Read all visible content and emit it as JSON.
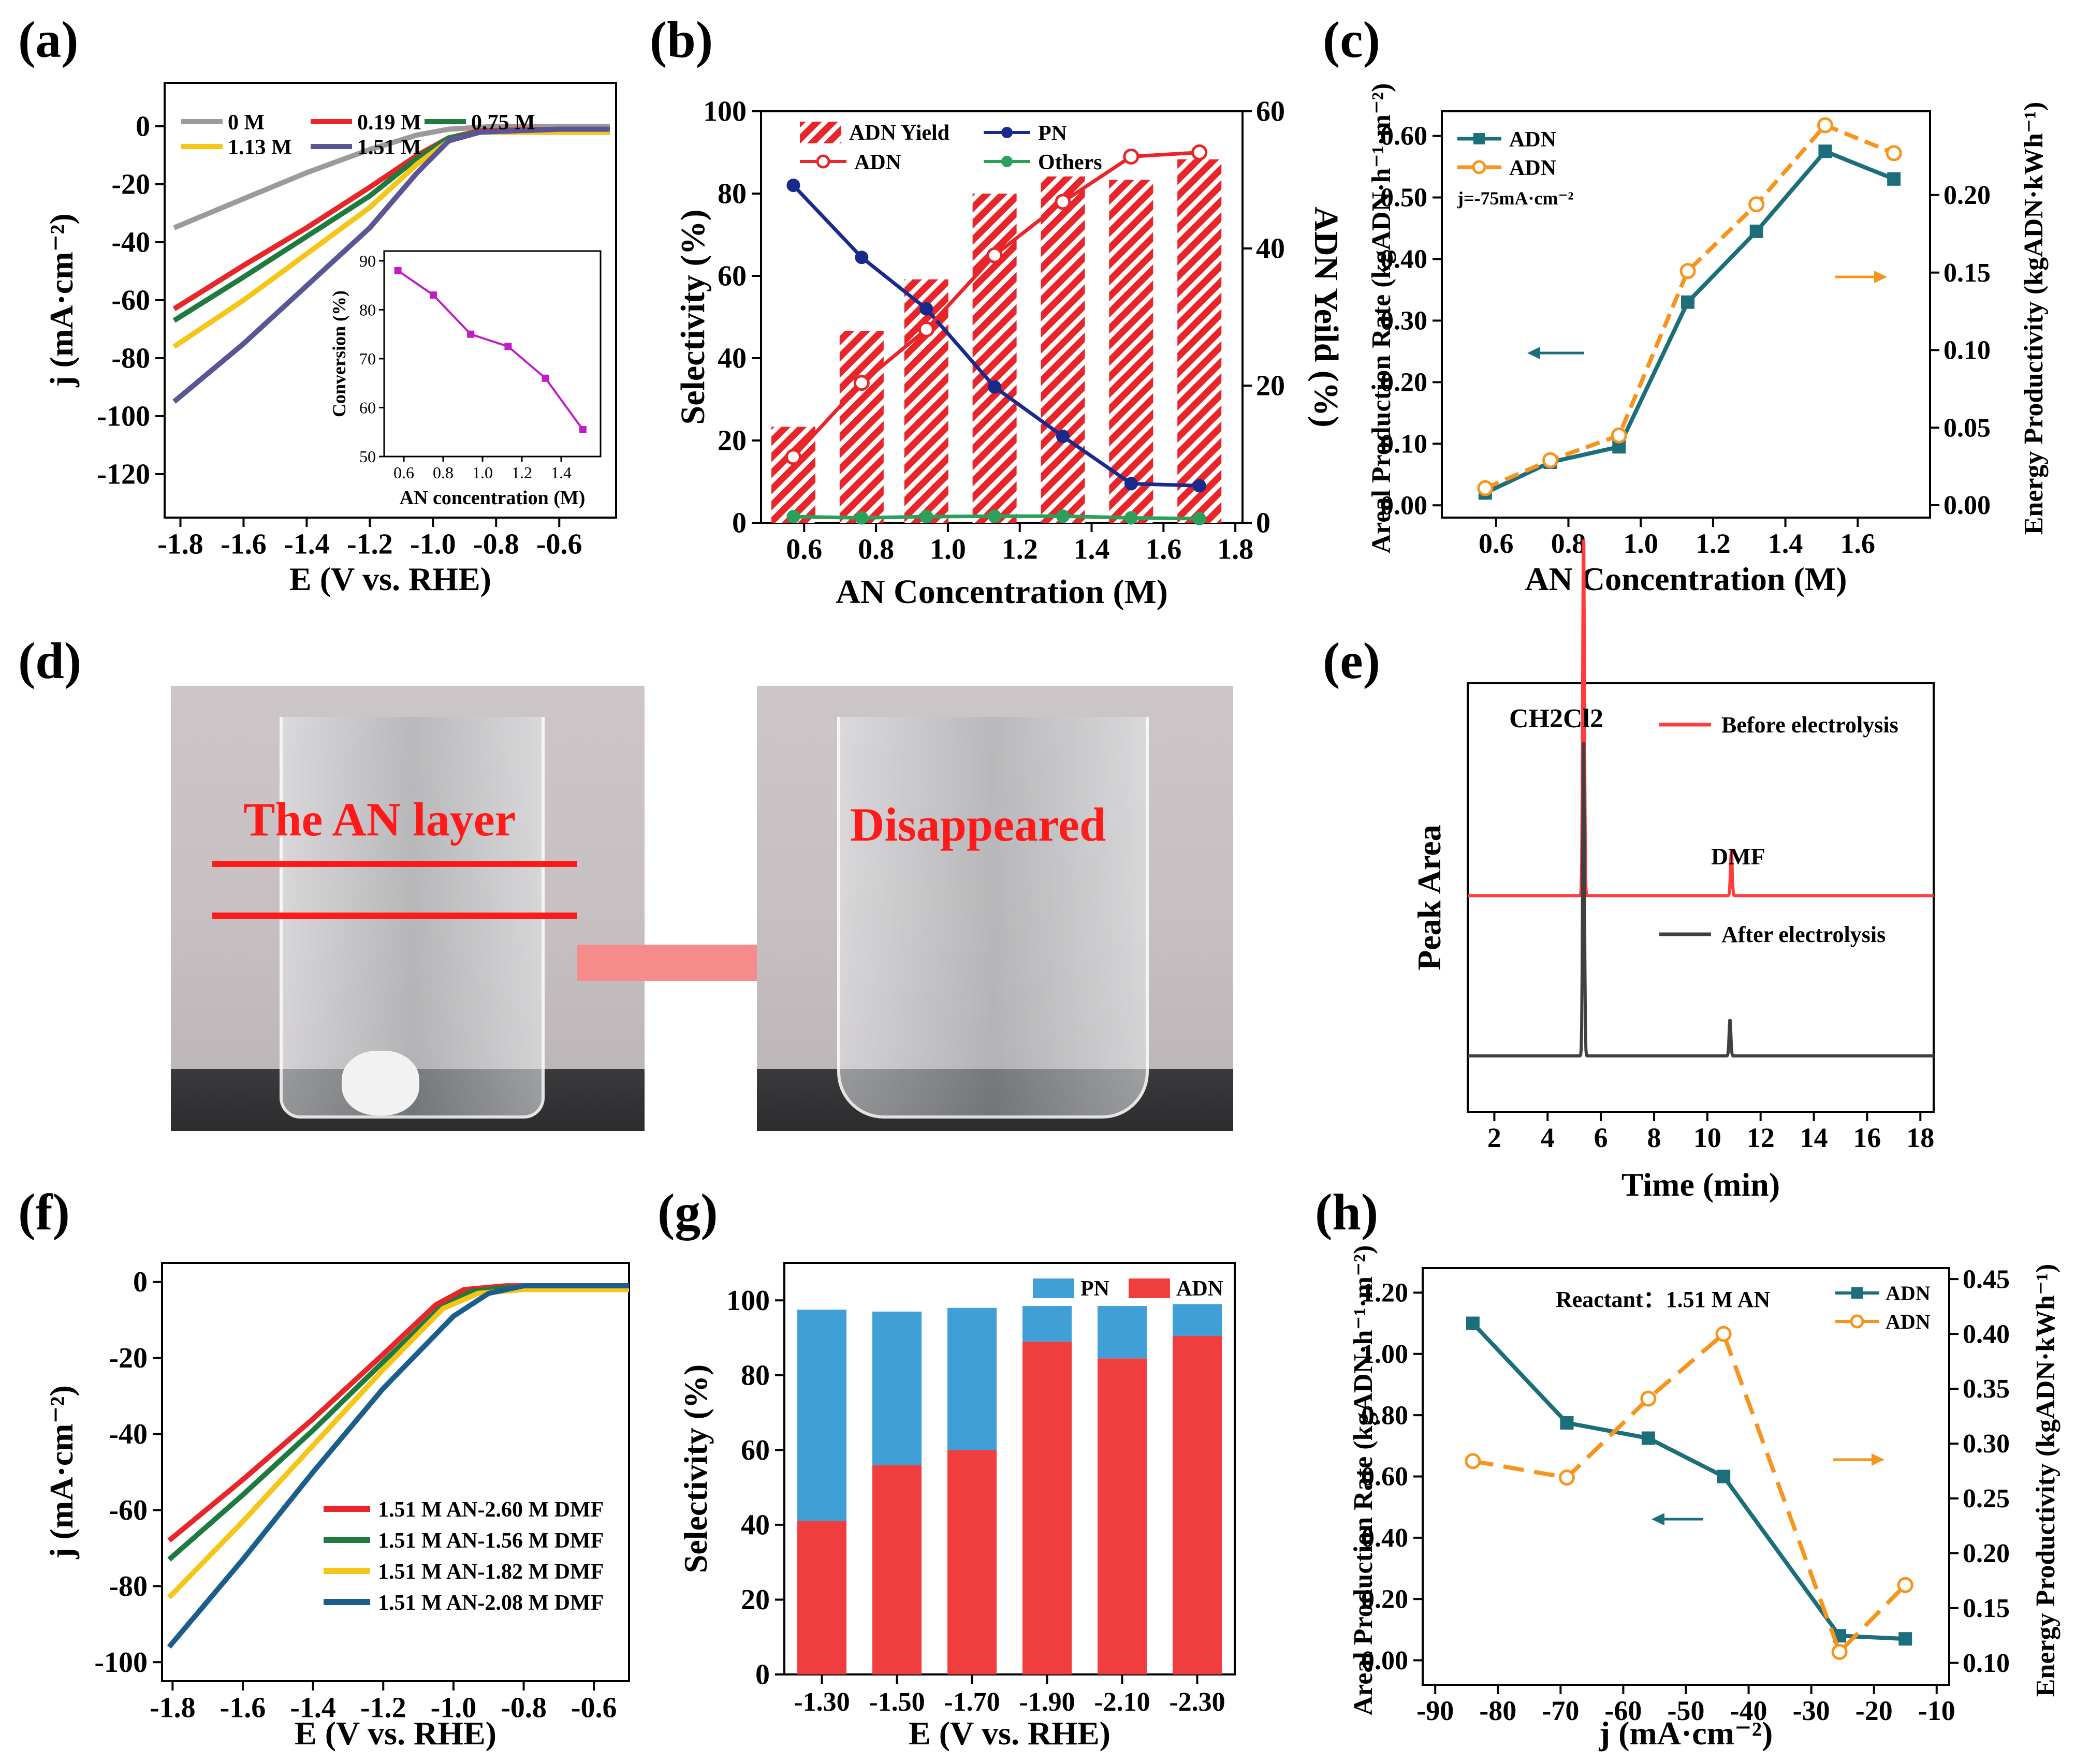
{
  "panels": {
    "a": "(a)",
    "b": "(b)",
    "c": "(c)",
    "d": "(d)",
    "e": "(e)",
    "f": "(f)",
    "g": "(g)",
    "h": "(h)"
  },
  "photo": {
    "left_label": "The AN layer",
    "right_label": "Disappeared"
  },
  "colors": {
    "red": "#e8262a",
    "blue": "#1a2a8c",
    "green": "#2aa05a",
    "teal": "#1b6e7a",
    "orange": "#f7941d",
    "gray": "#9b9b9b",
    "gold": "#f5c518",
    "indigo": "#5a5696",
    "magenta": "#c21cc4",
    "darkgreen": "#1e7a3e",
    "navy": "#1b5e8c",
    "lightblue": "#3f9fd6",
    "brightred": "#f03e3e",
    "gc_red": "#ff3b3b",
    "gc_black": "#404040"
  },
  "chart_data": [
    {
      "id": "a",
      "type": "line",
      "xlabel": "E (V vs. RHE)",
      "ylabel": "j (mA·cm⁻²)",
      "xlim": [
        -1.85,
        -0.42
      ],
      "ylim": [
        -135,
        15
      ],
      "xticks": [
        -1.8,
        -1.6,
        -1.4,
        -1.2,
        -1.0,
        -0.8,
        -0.6
      ],
      "yticks": [
        0,
        -20,
        -40,
        -60,
        -80,
        -100,
        -120
      ],
      "series": [
        {
          "name": "0 M",
          "color": "gray",
          "points": [
            [
              -1.82,
              -35
            ],
            [
              -1.6,
              -25
            ],
            [
              -1.4,
              -16
            ],
            [
              -1.2,
              -8
            ],
            [
              -1.05,
              -3
            ],
            [
              -0.95,
              -1
            ],
            [
              -0.8,
              0
            ],
            [
              -0.6,
              0
            ],
            [
              -0.44,
              0
            ]
          ]
        },
        {
          "name": "0.19 M",
          "color": "red",
          "points": [
            [
              -1.82,
              -63
            ],
            [
              -1.6,
              -48
            ],
            [
              -1.4,
              -35
            ],
            [
              -1.2,
              -21
            ],
            [
              -1.05,
              -10
            ],
            [
              -0.95,
              -4
            ],
            [
              -0.85,
              -1.5
            ],
            [
              -0.6,
              -1
            ],
            [
              -0.44,
              -1
            ]
          ]
        },
        {
          "name": "0.75 M",
          "color": "darkgreen",
          "points": [
            [
              -1.82,
              -67
            ],
            [
              -1.6,
              -52
            ],
            [
              -1.4,
              -38
            ],
            [
              -1.2,
              -24
            ],
            [
              -1.05,
              -11
            ],
            [
              -0.95,
              -4
            ],
            [
              -0.85,
              -2
            ],
            [
              -0.6,
              -2
            ],
            [
              -0.44,
              -2
            ]
          ]
        },
        {
          "name": "1.13 M",
          "color": "gold",
          "points": [
            [
              -1.82,
              -76
            ],
            [
              -1.6,
              -60
            ],
            [
              -1.4,
              -44
            ],
            [
              -1.2,
              -28
            ],
            [
              -1.05,
              -13
            ],
            [
              -0.95,
              -5
            ],
            [
              -0.85,
              -2
            ],
            [
              -0.6,
              -2
            ],
            [
              -0.44,
              -2
            ]
          ]
        },
        {
          "name": "1.51 M",
          "color": "indigo",
          "points": [
            [
              -1.82,
              -95
            ],
            [
              -1.6,
              -75
            ],
            [
              -1.4,
              -55
            ],
            [
              -1.2,
              -35
            ],
            [
              -1.05,
              -16
            ],
            [
              -0.95,
              -5
            ],
            [
              -0.85,
              -2
            ],
            [
              -0.6,
              -1
            ],
            [
              -0.44,
              -1
            ]
          ]
        }
      ],
      "inset": {
        "xlabel": "AN concentration (M)",
        "ylabel": "Conversion (%)",
        "xlim": [
          0.5,
          1.6
        ],
        "ylim": [
          50,
          92
        ],
        "xticks": [
          0.6,
          0.8,
          1.0,
          1.2,
          1.4
        ],
        "yticks": [
          50,
          60,
          70,
          80,
          90
        ],
        "x": [
          0.57,
          0.75,
          0.94,
          1.13,
          1.32,
          1.51
        ],
        "y": [
          88,
          83,
          75,
          72.5,
          66,
          55.5
        ]
      }
    },
    {
      "id": "b",
      "type": "bar+line",
      "xlabel": "AN Concentration (M)",
      "ylabel": "Selectivity (%)",
      "y2label": "ADN Yeild (%)",
      "xlim": [
        0.48,
        1.82
      ],
      "ylim": [
        0,
        100
      ],
      "y2lim": [
        0,
        60
      ],
      "xticks": [
        0.6,
        0.8,
        1.0,
        1.2,
        1.4,
        1.6,
        1.8
      ],
      "yticks": [
        0,
        20,
        40,
        60,
        80,
        100
      ],
      "y2ticks": [
        0,
        20,
        40,
        60
      ],
      "x": [
        0.57,
        0.76,
        0.94,
        1.13,
        1.32,
        1.51,
        1.7
      ],
      "bars": {
        "name": "ADN Yield",
        "values": [
          14,
          28,
          35.5,
          48,
          50.5,
          50,
          53
        ]
      },
      "series": [
        {
          "name": "PN",
          "color": "blue",
          "marker": "filled",
          "values": [
            82,
            64.5,
            52,
            33,
            21,
            9.5,
            9
          ]
        },
        {
          "name": "ADN",
          "color": "red",
          "marker": "open",
          "values": [
            16,
            34,
            47,
            65,
            78,
            89,
            90
          ]
        },
        {
          "name": "Others",
          "color": "green",
          "marker": "filled",
          "values": [
            1.5,
            1.2,
            1.5,
            1.6,
            1.6,
            1.2,
            1.0
          ]
        }
      ]
    },
    {
      "id": "c",
      "type": "line",
      "xlabel": "AN Concentration (M)",
      "ylabel": "Areal Production Rate (kgADN·h⁻¹·m⁻²)",
      "y2label": "Energy Productivity (kgADN·kWh⁻¹)",
      "xlim": [
        0.45,
        1.8
      ],
      "ylim": [
        -0.02,
        0.64
      ],
      "y2lim": [
        -0.008,
        0.254
      ],
      "xticks": [
        0.6,
        0.8,
        1.0,
        1.2,
        1.4,
        1.6
      ],
      "yticks": [
        0.0,
        0.1,
        0.2,
        0.3,
        0.4,
        0.5,
        0.6
      ],
      "y2ticks": [
        0.0,
        0.05,
        0.1,
        0.15,
        0.2
      ],
      "annotation": "j=-75mA·cm⁻²",
      "x": [
        0.57,
        0.75,
        0.94,
        1.13,
        1.32,
        1.51,
        1.7
      ],
      "series": [
        {
          "name": "ADN",
          "axis": "left",
          "color": "teal",
          "marker": "square",
          "values": [
            0.02,
            0.07,
            0.095,
            0.33,
            0.445,
            0.575,
            0.53
          ]
        },
        {
          "name": "ADN",
          "axis": "right",
          "color": "orange",
          "marker": "open-circle",
          "values": [
            0.011,
            0.029,
            0.045,
            0.151,
            0.194,
            0.245,
            0.227
          ]
        }
      ]
    },
    {
      "id": "e",
      "type": "line",
      "xlabel": "Time (min)",
      "ylabel": "Peak Area",
      "xlim": [
        1,
        18.5
      ],
      "xticks": [
        2,
        4,
        6,
        8,
        10,
        12,
        14,
        16,
        18
      ],
      "annotations": [
        "CH2Cl2",
        "DMF"
      ],
      "series": [
        {
          "name": "Before electrolysis",
          "color": "gc_red",
          "baseline": 0.58,
          "peaks": [
            [
              5.35,
              1.0
            ],
            [
              10.9,
              0.12
            ]
          ]
        },
        {
          "name": "After electrolysis",
          "color": "gc_black",
          "baseline": 0.15,
          "peaks": [
            [
              5.35,
              0.88
            ],
            [
              10.85,
              0.1
            ]
          ]
        }
      ]
    },
    {
      "id": "f",
      "type": "line",
      "xlabel": "E (V vs. RHE)",
      "ylabel": "j (mA·cm⁻²)",
      "xlim": [
        -1.83,
        -0.5
      ],
      "ylim": [
        -105,
        5
      ],
      "xticks": [
        -1.8,
        -1.6,
        -1.4,
        -1.2,
        -1.0,
        -0.8,
        -0.6
      ],
      "yticks": [
        0,
        -20,
        -40,
        -60,
        -80,
        -100
      ],
      "series": [
        {
          "name": "1.51 M AN-2.60 M DMF",
          "color": "red",
          "points": [
            [
              -1.81,
              -68
            ],
            [
              -1.6,
              -52
            ],
            [
              -1.4,
              -36
            ],
            [
              -1.2,
              -19
            ],
            [
              -1.05,
              -6
            ],
            [
              -0.97,
              -2
            ],
            [
              -0.85,
              -1
            ],
            [
              -0.5,
              -1
            ]
          ]
        },
        {
          "name": "1.51 M AN-1.56 M DMF",
          "color": "darkgreen",
          "points": [
            [
              -1.81,
              -73
            ],
            [
              -1.6,
              -56
            ],
            [
              -1.4,
              -39
            ],
            [
              -1.2,
              -21
            ],
            [
              -1.04,
              -7
            ],
            [
              -0.95,
              -2.5
            ],
            [
              -0.85,
              -1.5
            ],
            [
              -0.5,
              -1.5
            ]
          ]
        },
        {
          "name": "1.51 M AN-1.82 M DMF",
          "color": "gold",
          "points": [
            [
              -1.81,
              -83
            ],
            [
              -1.6,
              -63
            ],
            [
              -1.4,
              -43
            ],
            [
              -1.2,
              -23
            ],
            [
              -1.03,
              -7
            ],
            [
              -0.93,
              -3
            ],
            [
              -0.8,
              -2
            ],
            [
              -0.5,
              -2
            ]
          ]
        },
        {
          "name": "1.51 M AN-2.08 M DMF",
          "color": "navy",
          "points": [
            [
              -1.81,
              -96
            ],
            [
              -1.6,
              -73
            ],
            [
              -1.4,
              -50
            ],
            [
              -1.2,
              -28
            ],
            [
              -1.0,
              -9
            ],
            [
              -0.9,
              -3
            ],
            [
              -0.8,
              -1
            ],
            [
              -0.5,
              -1
            ]
          ]
        }
      ]
    },
    {
      "id": "g",
      "type": "stacked-bar",
      "xlabel": "E (V vs. RHE)",
      "ylabel": "Selectivity (%)",
      "ylim": [
        0,
        110
      ],
      "yticks": [
        0,
        20,
        40,
        60,
        80,
        100
      ],
      "categories": [
        "-1.30",
        "-1.50",
        "-1.70",
        "-1.90",
        "-2.10",
        "-2.30"
      ],
      "series": [
        {
          "name": "ADN",
          "color": "brightred",
          "values": [
            41,
            56,
            60,
            89,
            84.5,
            90.5
          ]
        },
        {
          "name": "PN",
          "color": "lightblue",
          "values": [
            56.5,
            41,
            38,
            9.5,
            14,
            8.5
          ]
        }
      ]
    },
    {
      "id": "h",
      "type": "line",
      "xlabel": "j (mA·cm⁻²)",
      "ylabel": "Areal Production Rate (kgADN·h⁻¹·m⁻²)",
      "y2label": "Energy Productivity (kgADN·kWh⁻¹)",
      "xlim": [
        -92,
        -8
      ],
      "ylim": [
        -0.08,
        1.28
      ],
      "y2lim": [
        0.08,
        0.46
      ],
      "xticks": [
        -90,
        -80,
        -70,
        -60,
        -50,
        -40,
        -30,
        -20,
        -10
      ],
      "yticks": [
        0.0,
        0.2,
        0.4,
        0.6,
        0.8,
        1.0,
        1.2
      ],
      "y2ticks": [
        0.1,
        0.15,
        0.2,
        0.25,
        0.3,
        0.35,
        0.4,
        0.45
      ],
      "annotation": "Reactant：1.51 M AN",
      "x": [
        -84,
        -69,
        -56,
        -44,
        -25.5,
        -15
      ],
      "series": [
        {
          "name": "ADN",
          "axis": "left",
          "color": "teal",
          "marker": "square",
          "values": [
            1.1,
            0.775,
            0.725,
            0.6,
            0.08,
            0.07
          ]
        },
        {
          "name": "ADN",
          "axis": "right",
          "color": "orange",
          "marker": "open-circle",
          "values": [
            0.284,
            0.269,
            0.341,
            0.4,
            0.11,
            0.171
          ]
        }
      ]
    }
  ]
}
